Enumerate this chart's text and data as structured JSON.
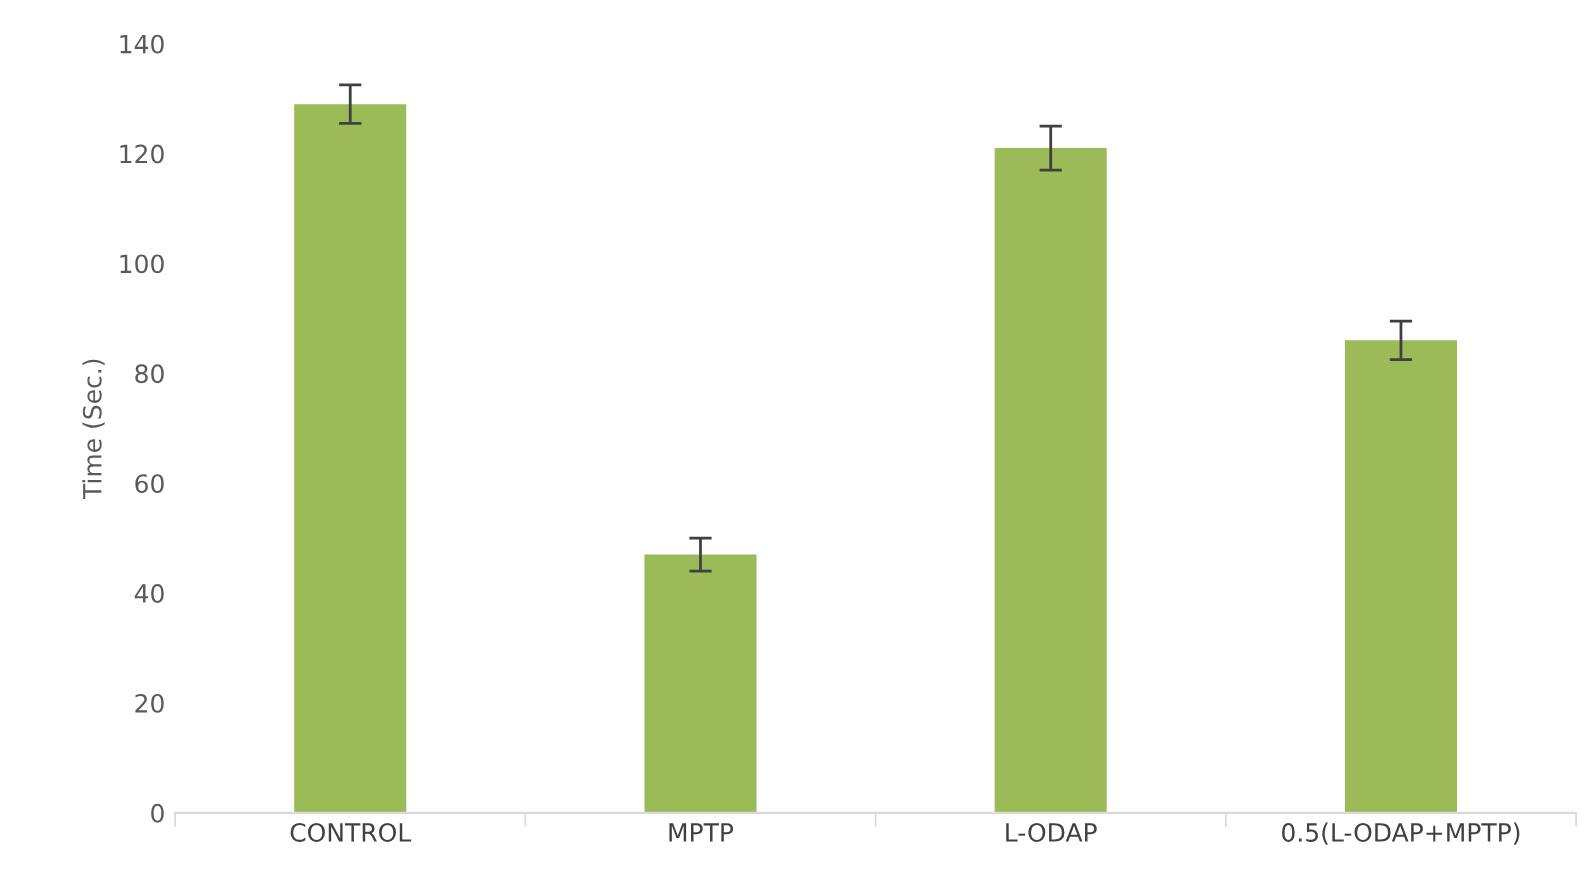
{
  "chart_data": {
    "type": "bar",
    "ylabel": "Time (Sec.)",
    "categories": [
      "CONTROL",
      "MPTP",
      "L-ODAP",
      "0.5(L-ODAP+MPTP)"
    ],
    "values": [
      129,
      47,
      121,
      86
    ],
    "errors": [
      3.5,
      3,
      4,
      3.5
    ],
    "color": "#9bbb59",
    "ylim": [
      0,
      140
    ],
    "yticks": [
      0,
      20,
      40,
      60,
      80,
      100,
      120,
      140
    ],
    "grid": false
  }
}
